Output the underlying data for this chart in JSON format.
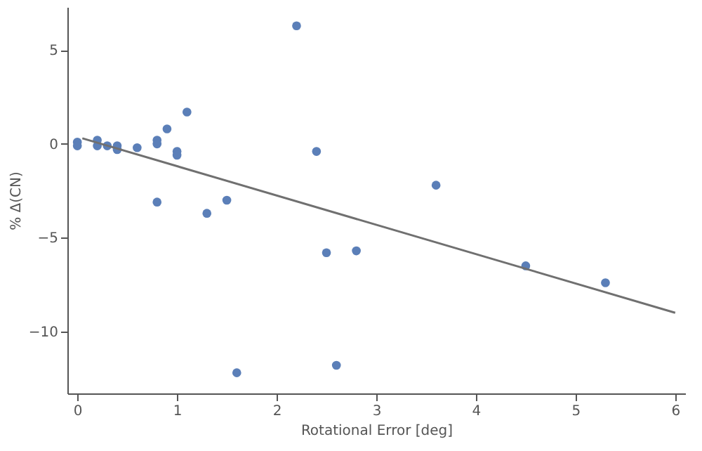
{
  "chart_data": {
    "type": "scatter",
    "xlabel": "Rotational Error [deg]",
    "ylabel": "% Δ(CN)",
    "xlim": [
      -0.1,
      6.1
    ],
    "ylim": [
      -13.3,
      7.3
    ],
    "xticks": [
      0,
      1,
      2,
      3,
      4,
      5,
      6
    ],
    "yticks": [
      -10,
      -5,
      0,
      5
    ],
    "grid": false,
    "series": [
      {
        "marker": "circle",
        "color": "#5b7fb8",
        "x": [
          0,
          0,
          0.2,
          0.2,
          0.3,
          0.4,
          0.4,
          0.6,
          0.8,
          0.8,
          0.8,
          0.9,
          1,
          1,
          1.1,
          1.3,
          1.5,
          1.6,
          2.2,
          2.4,
          2.5,
          2.6,
          2.8,
          3.6,
          4.5,
          5.3
        ],
        "values": [
          0.1,
          -0.1,
          0.2,
          -0.1,
          -0.1,
          -0.1,
          -0.3,
          -0.2,
          0.2,
          0,
          -3.1,
          0.8,
          -0.4,
          -0.6,
          1.7,
          -3.7,
          -3,
          -12.2,
          6.3,
          -0.4,
          -5.8,
          -11.8,
          -5.7,
          -2.2,
          -6.5,
          -7.4
        ]
      },
      {
        "type": "line",
        "color": "#707070",
        "x": [
          0.05,
          6
        ],
        "values": [
          0.3,
          -9.0
        ]
      }
    ]
  }
}
